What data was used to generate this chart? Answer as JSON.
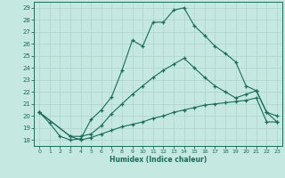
{
  "xlabel": "Humidex (Indice chaleur)",
  "xlim": [
    -0.5,
    23.5
  ],
  "ylim": [
    17.5,
    29.5
  ],
  "xticks": [
    0,
    1,
    2,
    3,
    4,
    5,
    6,
    7,
    8,
    9,
    10,
    11,
    12,
    13,
    14,
    15,
    16,
    17,
    18,
    19,
    20,
    21,
    22,
    23
  ],
  "yticks": [
    18,
    19,
    20,
    21,
    22,
    23,
    24,
    25,
    26,
    27,
    28,
    29
  ],
  "bg_color": "#c5e8e0",
  "line_color": "#1a6b5a",
  "grid_color": "#b0d8d0",
  "line1_x": [
    0,
    1,
    2,
    3,
    4,
    5,
    6,
    7,
    8,
    9,
    10,
    11,
    12,
    13,
    14,
    15,
    16,
    17,
    18,
    19,
    20,
    21,
    22,
    23
  ],
  "line1_y": [
    20.3,
    19.4,
    18.3,
    18.0,
    18.1,
    19.7,
    20.5,
    21.6,
    23.8,
    26.3,
    25.8,
    27.8,
    27.8,
    28.8,
    29.0,
    27.5,
    26.7,
    25.8,
    25.2,
    24.5,
    22.5,
    22.1,
    20.3,
    19.5
  ],
  "line2_x": [
    0,
    3,
    4,
    5,
    6,
    7,
    8,
    9,
    10,
    11,
    12,
    13,
    14,
    15,
    16,
    17,
    18,
    19,
    20,
    21,
    22,
    23
  ],
  "line2_y": [
    20.3,
    18.3,
    18.3,
    18.5,
    19.2,
    20.2,
    21.0,
    21.8,
    22.5,
    23.2,
    23.8,
    24.3,
    24.8,
    24.0,
    23.2,
    22.5,
    22.0,
    21.5,
    21.8,
    22.1,
    20.3,
    20.0
  ],
  "line3_x": [
    0,
    3,
    4,
    5,
    6,
    7,
    8,
    9,
    10,
    11,
    12,
    13,
    14,
    15,
    16,
    17,
    18,
    19,
    20,
    21,
    22,
    23
  ],
  "line3_y": [
    20.3,
    18.3,
    18.0,
    18.2,
    18.5,
    18.8,
    19.1,
    19.3,
    19.5,
    19.8,
    20.0,
    20.3,
    20.5,
    20.7,
    20.9,
    21.0,
    21.1,
    21.2,
    21.3,
    21.5,
    19.5,
    19.5
  ]
}
